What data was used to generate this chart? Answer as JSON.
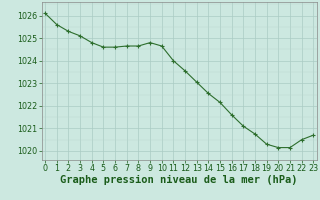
{
  "x": [
    0,
    1,
    2,
    3,
    4,
    5,
    6,
    7,
    8,
    9,
    10,
    11,
    12,
    13,
    14,
    15,
    16,
    17,
    18,
    19,
    20,
    21,
    22,
    23
  ],
  "y": [
    1026.1,
    1025.6,
    1025.3,
    1025.1,
    1024.8,
    1024.6,
    1024.6,
    1024.65,
    1024.65,
    1024.8,
    1024.65,
    1024.0,
    1023.55,
    1023.05,
    1022.55,
    1022.15,
    1021.6,
    1021.1,
    1020.75,
    1020.3,
    1020.15,
    1020.15,
    1020.5,
    1020.7
  ],
  "line_color": "#2d6e2d",
  "marker": "+",
  "marker_size": 3,
  "marker_linewidth": 0.8,
  "line_width": 0.8,
  "background_color": "#cce8e0",
  "grid_color_major": "#aaccc4",
  "grid_color_minor": "#bcd8d0",
  "xlabel": "Graphe pression niveau de la mer (hPa)",
  "xlabel_color": "#1a5c1a",
  "xlabel_fontsize": 7.5,
  "tick_color": "#1a5c1a",
  "tick_fontsize": 5.8,
  "ylim": [
    1019.6,
    1026.6
  ],
  "yticks": [
    1020,
    1021,
    1022,
    1023,
    1024,
    1025,
    1026
  ],
  "xticks": [
    0,
    1,
    2,
    3,
    4,
    5,
    6,
    7,
    8,
    9,
    10,
    11,
    12,
    13,
    14,
    15,
    16,
    17,
    18,
    19,
    20,
    21,
    22,
    23
  ],
  "xlim": [
    -0.3,
    23.3
  ]
}
